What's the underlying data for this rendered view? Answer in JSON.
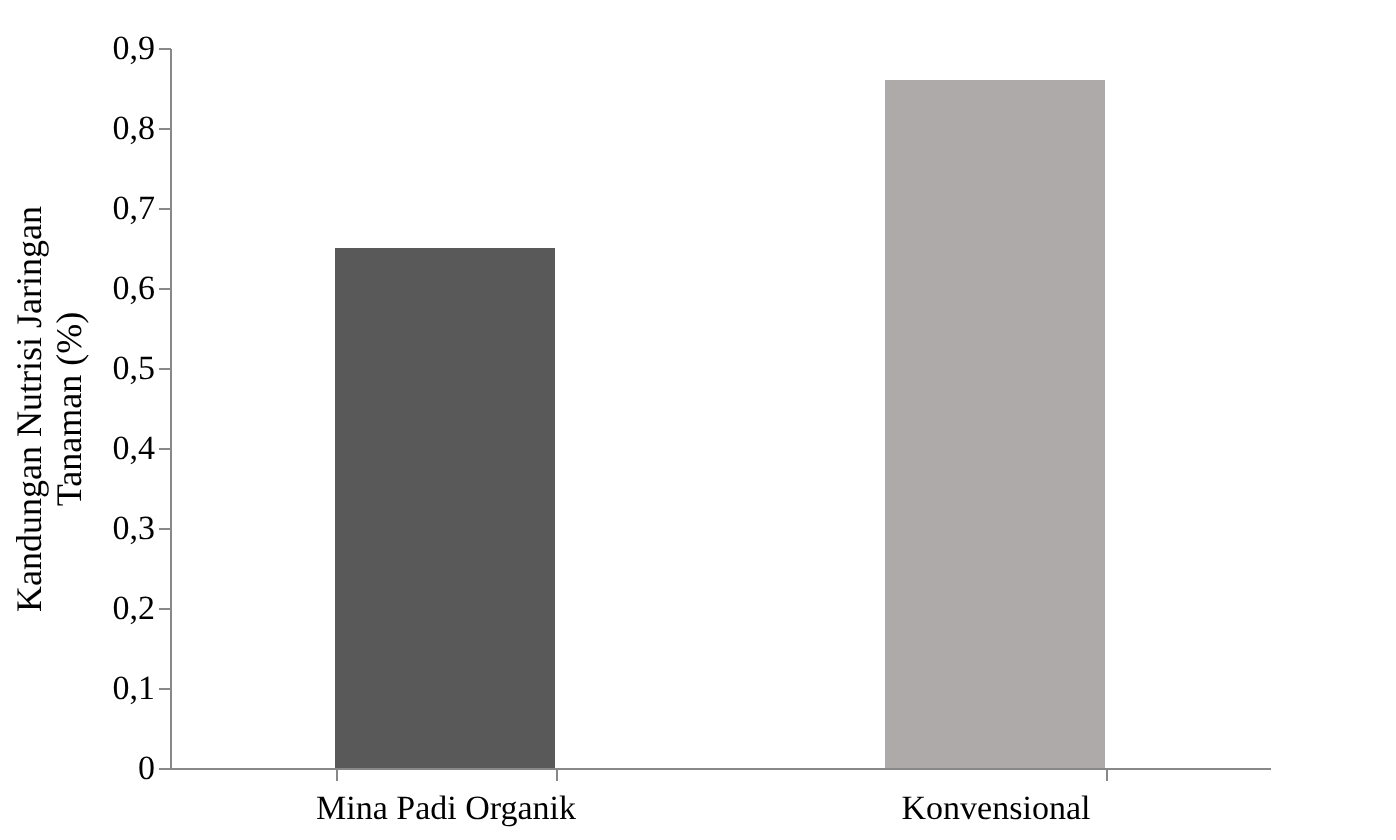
{
  "chart_data": {
    "type": "bar",
    "ylabel": "Kandungan Nutrisi Jaringan\nTanaman (%)",
    "categories": [
      "Mina Padi Organik",
      "Konvensional"
    ],
    "values": [
      0.65,
      0.86
    ],
    "colors": [
      "#595959",
      "#aeaaaa"
    ],
    "ylim": [
      0,
      0.9
    ],
    "yticks": [
      0,
      {
        "value": 0.1,
        "label": "0,1"
      },
      {
        "value": 0.2,
        "label": "0,2"
      },
      {
        "value": 0.3,
        "label": "0,3"
      },
      {
        "value": 0.4,
        "label": "0,4"
      },
      {
        "value": 0.5,
        "label": "0,5"
      },
      {
        "value": 0.6,
        "label": "0,6"
      },
      {
        "value": 0.7,
        "label": "0,7"
      },
      {
        "value": 0.8,
        "label": "0,8"
      },
      {
        "value": 0.9,
        "label": "0,9"
      }
    ],
    "grid": false,
    "legend": false
  }
}
